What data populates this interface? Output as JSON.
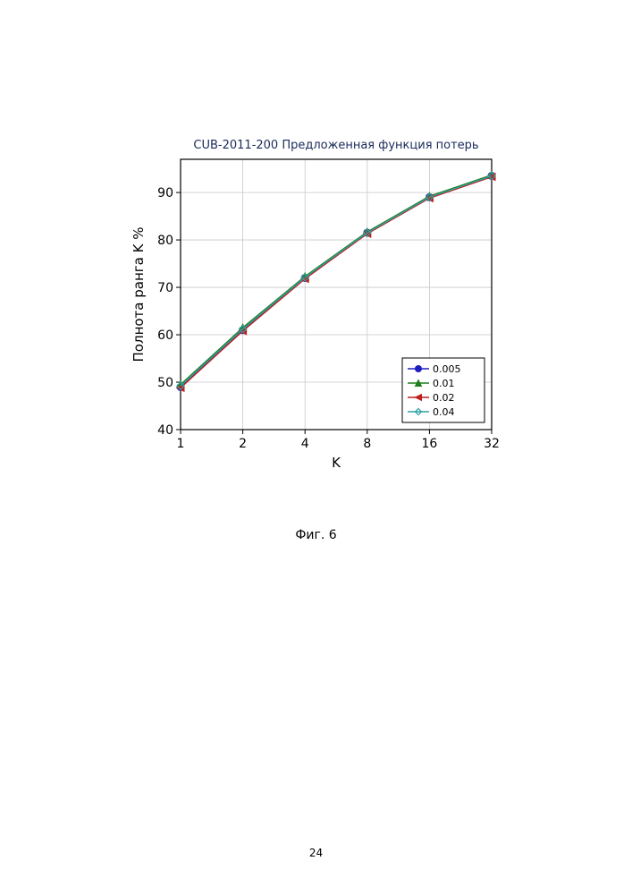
{
  "page": {
    "caption": "Фиг. 6",
    "number": "24"
  },
  "chart": {
    "type": "line",
    "title": "CUB-2011-200 Предложенная функция потерь",
    "title_fontsize": 13,
    "title_color": "#1a2a5a",
    "xlabel": "K",
    "ylabel": "Полнота ранга K %",
    "label_fontsize": 15,
    "label_color": "#000000",
    "tick_fontsize": 14,
    "tick_color": "#000000",
    "x_ticks": [
      "1",
      "2",
      "4",
      "8",
      "16",
      "32"
    ],
    "x_positions": [
      0,
      1,
      2,
      3,
      4,
      5
    ],
    "y_ticks": [
      "40",
      "50",
      "60",
      "70",
      "80",
      "90"
    ],
    "y_positions": [
      40,
      50,
      60,
      70,
      80,
      90
    ],
    "ylim": [
      40,
      97
    ],
    "xlim": [
      0,
      5
    ],
    "background_color": "#ffffff",
    "grid_color": "#c8c8c8",
    "axis_color": "#000000",
    "series": [
      {
        "name": "0.005",
        "color": "#1f1fbf",
        "marker": "circle",
        "values": [
          49.0,
          61.0,
          72.0,
          81.5,
          89.0,
          93.5
        ]
      },
      {
        "name": "0.01",
        "color": "#1f7f1f",
        "marker": "triangle",
        "values": [
          49.5,
          61.5,
          72.3,
          81.7,
          89.2,
          93.7
        ]
      },
      {
        "name": "0.02",
        "color": "#bf1f1f",
        "marker": "tri-left",
        "values": [
          48.8,
          60.8,
          71.8,
          81.3,
          88.8,
          93.3
        ]
      },
      {
        "name": "0.04",
        "color": "#2fa0a0",
        "marker": "diamond",
        "values": [
          49.2,
          61.2,
          72.1,
          81.5,
          89.0,
          93.5
        ]
      }
    ],
    "legend": {
      "labels": [
        "0.005",
        "0.01",
        "0.02",
        "0.04"
      ],
      "fontsize": 11,
      "border_color": "#000000",
      "bg": "#ffffff"
    },
    "line_width": 1.4,
    "marker_size": 4
  }
}
